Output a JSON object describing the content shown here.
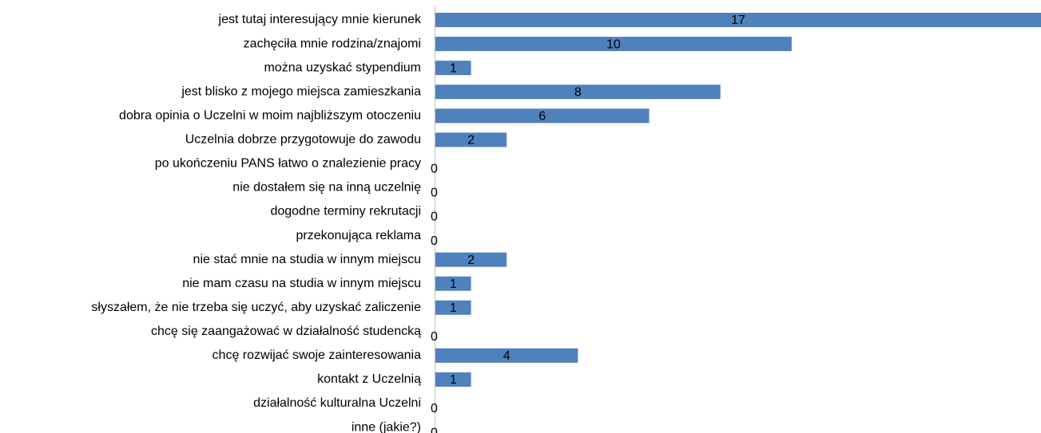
{
  "chart_data": {
    "type": "barh",
    "categories": [
      "jest tutaj interesujący mnie kierunek",
      "zachęciła mnie rodzina/znajomi",
      "można uzyskać stypendium",
      "jest blisko z mojego miejsca zamieszkania",
      "dobra opinia o Uczelni w moim najbliższym otoczeniu",
      "Uczelnia dobrze przygotowuje do zawodu",
      "po ukończeniu PANS łatwo o znalezienie pracy",
      "nie dostałem się na inną uczelnię",
      "dogodne terminy rekrutacji",
      "przekonująca reklama",
      "nie stać mnie na studia w innym miejscu",
      "nie mam czasu na studia w innym miejscu",
      "słyszałem, że nie trzeba się uczyć, aby uzyskać zaliczenie",
      "chcę się zaangażować w działalność studencką",
      "chcę rozwijać swoje zainteresowania",
      "kontakt z Uczelnią",
      "działalność kulturalna Uczelni",
      "inne (jakie?)"
    ],
    "values": [
      17,
      10,
      1,
      8,
      6,
      2,
      0,
      0,
      0,
      0,
      2,
      1,
      1,
      0,
      4,
      1,
      0,
      0
    ],
    "color": "#4f81bd",
    "xlim": [
      0,
      17
    ]
  }
}
